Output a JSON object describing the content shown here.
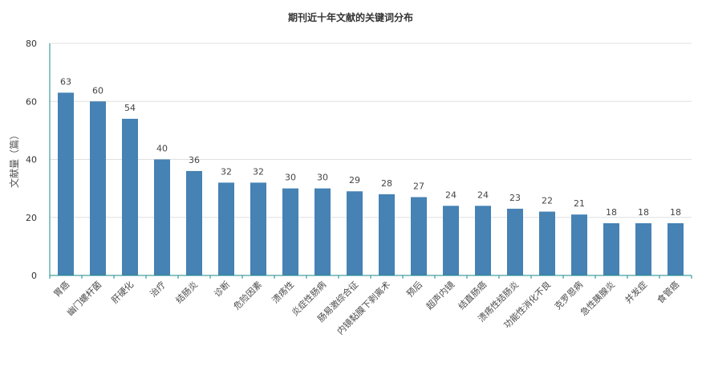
{
  "chart_data": {
    "type": "bar",
    "title": "期刊近十年文献的关键词分布",
    "ylabel": "文献量（篇）",
    "xlabel": "",
    "ylim": [
      0,
      80
    ],
    "yticks": [
      0,
      20,
      40,
      60,
      80
    ],
    "grid": true,
    "categories": [
      "胃癌",
      "幽门螺杆菌",
      "肝硬化",
      "治疗",
      "结肠炎",
      "诊断",
      "危险因素",
      "溃疡性",
      "炎症性肠病",
      "肠易激综合征",
      "内镜黏膜下剥离术",
      "预后",
      "超声内镜",
      "结直肠癌",
      "溃疡性结肠炎",
      "功能性消化不良",
      "克罗恩病",
      "急性胰腺炎",
      "并发症",
      "食管癌"
    ],
    "values": [
      63,
      60,
      54,
      40,
      36,
      32,
      32,
      30,
      30,
      29,
      28,
      27,
      24,
      24,
      23,
      22,
      21,
      18,
      18,
      18
    ],
    "colors": {
      "bar": "#4682b4",
      "axis": "#1a8a8a",
      "grid": "#e0e0e0"
    }
  }
}
